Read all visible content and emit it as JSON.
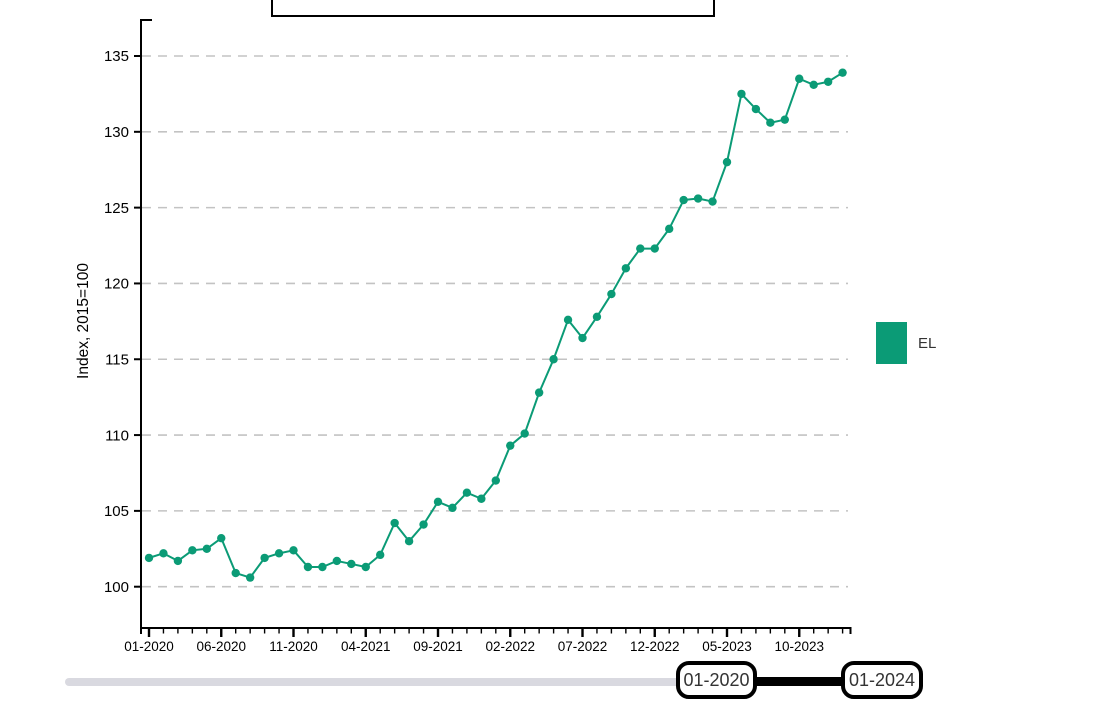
{
  "chart_data": {
    "type": "line",
    "title": "",
    "ylabel": "Index, 2015=100",
    "grid": "horizontal-dashed",
    "legend_position": "right",
    "label_every": 5,
    "y_ticks": [
      100,
      105,
      110,
      115,
      120,
      125,
      130,
      135
    ],
    "ylim": [
      97.3,
      137.3
    ],
    "x": [
      "01-2020",
      "02-2020",
      "03-2020",
      "04-2020",
      "05-2020",
      "06-2020",
      "07-2020",
      "08-2020",
      "09-2020",
      "10-2020",
      "11-2020",
      "12-2020",
      "01-2021",
      "02-2021",
      "03-2021",
      "04-2021",
      "05-2021",
      "06-2021",
      "07-2021",
      "08-2021",
      "09-2021",
      "10-2021",
      "11-2021",
      "12-2021",
      "01-2022",
      "02-2022",
      "03-2022",
      "04-2022",
      "05-2022",
      "06-2022",
      "07-2022",
      "08-2022",
      "09-2022",
      "10-2022",
      "11-2022",
      "12-2022",
      "01-2023",
      "02-2023",
      "03-2023",
      "04-2023",
      "05-2023",
      "06-2023",
      "07-2023",
      "08-2023",
      "09-2023",
      "10-2023",
      "11-2023",
      "12-2023",
      "01-2024"
    ],
    "series": [
      {
        "name": "EL",
        "color": "#0b9b76",
        "values": [
          101.9,
          102.2,
          101.7,
          102.4,
          102.5,
          103.2,
          100.9,
          100.6,
          101.9,
          102.2,
          102.4,
          101.3,
          101.3,
          101.7,
          101.5,
          101.3,
          102.1,
          104.2,
          103.0,
          104.1,
          105.6,
          105.2,
          106.2,
          105.8,
          107.0,
          109.3,
          110.1,
          112.8,
          115.0,
          117.6,
          116.4,
          117.8,
          119.3,
          121.0,
          122.3,
          122.3,
          123.6,
          125.5,
          125.6,
          125.4,
          128.0,
          132.5,
          131.5,
          130.6,
          130.8,
          133.5,
          133.1,
          133.3,
          133.9
        ]
      }
    ]
  },
  "legend": {
    "label": "EL",
    "swatch_color": "#0b9b76"
  },
  "slider": {
    "start_value": "01-2020",
    "end_value": "01-2024",
    "track_color": "#d9d9e0",
    "range_color": "#000000"
  },
  "colors": {
    "grid": "#c3c3c3",
    "axis": "#000000"
  }
}
